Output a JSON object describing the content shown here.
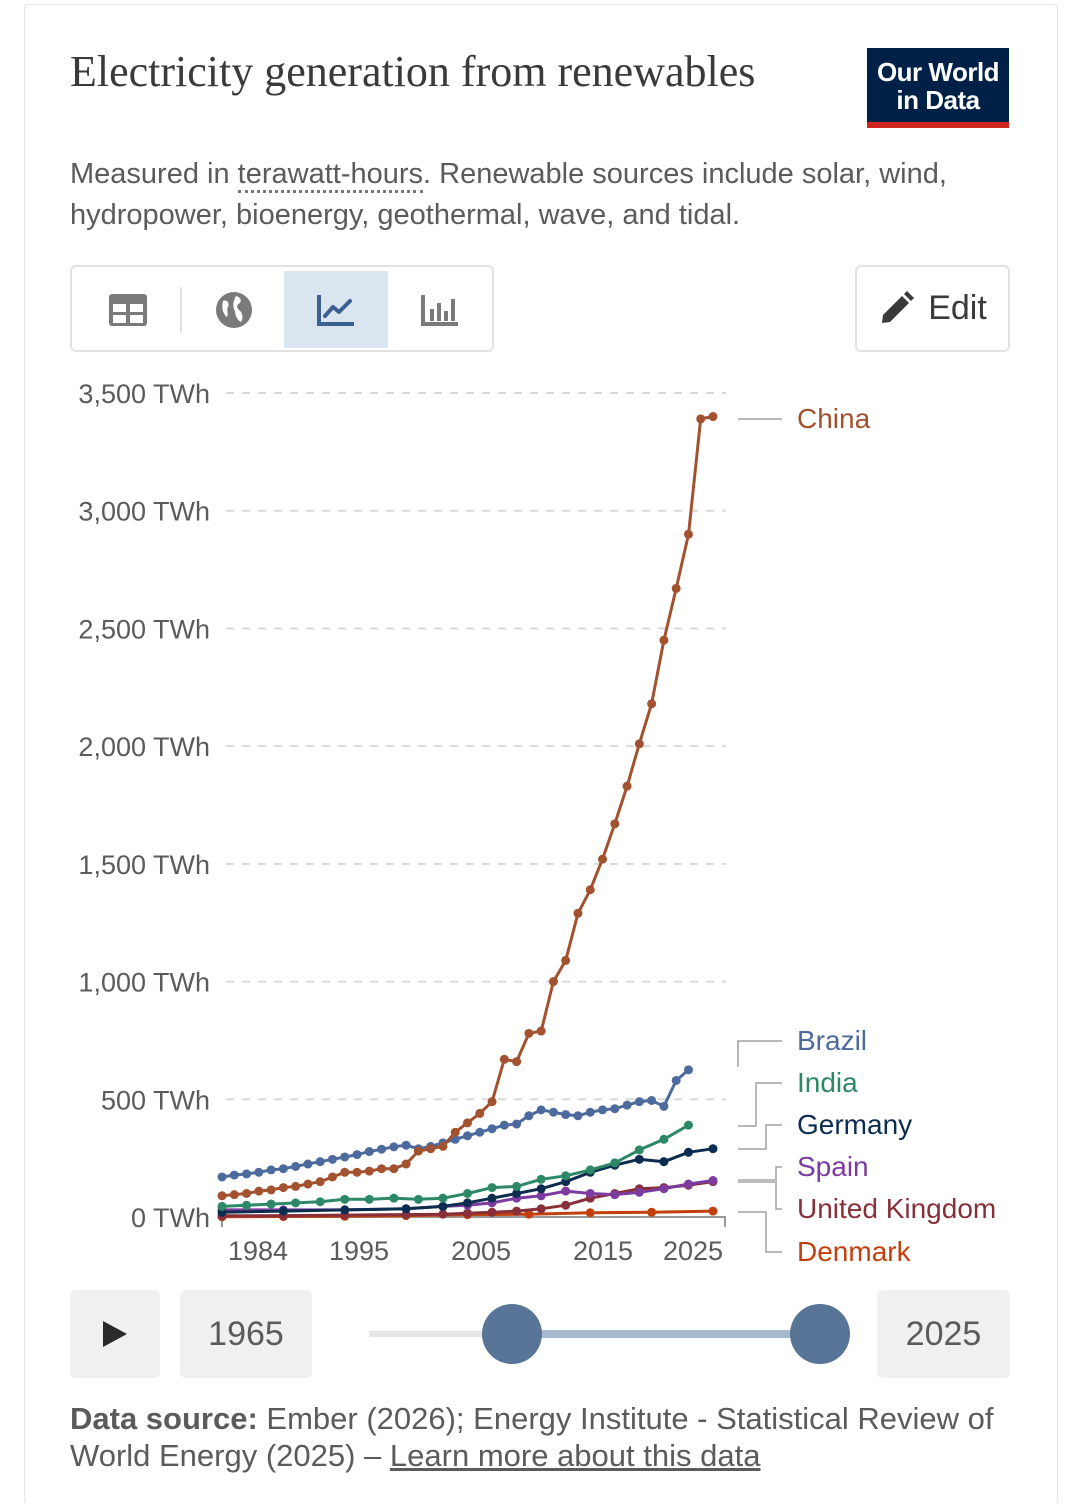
{
  "title": "Electricity generation from renewables",
  "logo": {
    "line1": "Our World",
    "line2": "in Data"
  },
  "subtitle": {
    "prefix": "Measured in ",
    "unit_link": "terawatt-hours",
    "suffix": ". Renewable sources include solar, wind, hydropower, bioenergy, geothermal, wave, and tidal."
  },
  "tabs": [
    {
      "name": "table",
      "icon": "table-icon"
    },
    {
      "name": "map",
      "icon": "globe-icon"
    },
    {
      "name": "line-chart",
      "icon": "line-chart-icon",
      "active": true
    },
    {
      "name": "bar-chart",
      "icon": "bar-chart-icon"
    }
  ],
  "edit_label": "Edit",
  "chart_data": {
    "type": "line",
    "ylim": [
      0,
      3500
    ],
    "yticks": [
      0,
      500,
      1000,
      1500,
      2000,
      2500,
      3000,
      3500
    ],
    "ytick_labels": [
      "0 TWh",
      "500 TWh",
      "1,000 TWh",
      "1,500 TWh",
      "2,000 TWh",
      "2,500 TWh",
      "3,000 TWh",
      "3,500 TWh"
    ],
    "xlim": [
      1985,
      2025
    ],
    "xticks": [
      1984,
      1995,
      2005,
      2015,
      2025
    ],
    "xtick_labels": [
      "1984",
      "1995",
      "2005",
      "2015",
      "2025"
    ],
    "series": [
      {
        "name": "China",
        "color": "#a2522e",
        "x": [
          1985,
          1986,
          1987,
          1988,
          1989,
          1990,
          1991,
          1992,
          1993,
          1994,
          1995,
          1996,
          1997,
          1998,
          1999,
          2000,
          2001,
          2002,
          2003,
          2004,
          2005,
          2006,
          2007,
          2008,
          2009,
          2010,
          2011,
          2012,
          2013,
          2014,
          2015,
          2016,
          2017,
          2018,
          2019,
          2020,
          2021,
          2022,
          2023,
          2024,
          2025
        ],
        "y": [
          90,
          95,
          100,
          110,
          115,
          125,
          130,
          140,
          150,
          170,
          190,
          190,
          195,
          205,
          205,
          225,
          280,
          290,
          300,
          360,
          400,
          440,
          490,
          670,
          660,
          780,
          790,
          1000,
          1090,
          1290,
          1390,
          1520,
          1670,
          1830,
          2010,
          2180,
          2450,
          2670,
          2900,
          3390,
          3400
        ]
      },
      {
        "name": "Brazil",
        "color": "#4c6a9c",
        "x": [
          1985,
          1986,
          1987,
          1988,
          1989,
          1990,
          1991,
          1992,
          1993,
          1994,
          1995,
          1996,
          1997,
          1998,
          1999,
          2000,
          2001,
          2002,
          2003,
          2004,
          2005,
          2006,
          2007,
          2008,
          2009,
          2010,
          2011,
          2012,
          2013,
          2014,
          2015,
          2016,
          2017,
          2018,
          2019,
          2020,
          2021,
          2022,
          2023
        ],
        "y": [
          170,
          178,
          183,
          190,
          200,
          205,
          215,
          225,
          235,
          245,
          255,
          265,
          278,
          288,
          298,
          305,
          290,
          300,
          315,
          330,
          345,
          360,
          375,
          390,
          395,
          430,
          455,
          445,
          435,
          430,
          445,
          455,
          460,
          475,
          490,
          495,
          470,
          580,
          625
        ]
      },
      {
        "name": "India",
        "color": "#2d8965",
        "x": [
          1985,
          1987,
          1989,
          1991,
          1993,
          1995,
          1997,
          1999,
          2001,
          2003,
          2005,
          2007,
          2009,
          2011,
          2013,
          2015,
          2017,
          2019,
          2021,
          2023
        ],
        "y": [
          45,
          50,
          55,
          60,
          65,
          75,
          75,
          80,
          75,
          80,
          100,
          125,
          130,
          160,
          175,
          200,
          230,
          285,
          330,
          390
        ]
      },
      {
        "name": "Germany",
        "color": "#0c2d50",
        "x": [
          1985,
          1990,
          1995,
          2000,
          2003,
          2005,
          2007,
          2009,
          2011,
          2013,
          2015,
          2017,
          2019,
          2021,
          2023,
          2025
        ],
        "y": [
          20,
          25,
          30,
          35,
          45,
          60,
          80,
          100,
          120,
          150,
          190,
          220,
          245,
          235,
          275,
          290
        ]
      },
      {
        "name": "Spain",
        "color": "#7c3b9e",
        "x": [
          1985,
          1990,
          1995,
          2000,
          2003,
          2005,
          2007,
          2009,
          2011,
          2013,
          2015,
          2017,
          2019,
          2021,
          2023,
          2025
        ],
        "y": [
          30,
          30,
          30,
          35,
          45,
          50,
          60,
          80,
          90,
          110,
          100,
          95,
          105,
          120,
          140,
          155
        ]
      },
      {
        "name": "United Kingdom",
        "color": "#883039",
        "x": [
          1985,
          1990,
          1995,
          2000,
          2003,
          2005,
          2007,
          2009,
          2011,
          2013,
          2015,
          2017,
          2019,
          2021,
          2023,
          2025
        ],
        "y": [
          5,
          6,
          8,
          10,
          12,
          16,
          20,
          25,
          35,
          50,
          80,
          100,
          120,
          125,
          135,
          150
        ]
      },
      {
        "name": "Denmark",
        "color": "#c2400c",
        "x": [
          1985,
          1990,
          1995,
          2000,
          2005,
          2010,
          2015,
          2020,
          2025
        ],
        "y": [
          1,
          2,
          3,
          6,
          10,
          12,
          18,
          20,
          25
        ]
      }
    ],
    "legend_labels": [
      "China",
      "Brazil",
      "India",
      "Germany",
      "Spain",
      "United Kingdom",
      "Denmark"
    ]
  },
  "timeline": {
    "play_label": "play",
    "start_year": "1965",
    "end_year": "2025"
  },
  "source": {
    "label": "Data source:",
    "text": " Ember (2026); Energy Institute - Statistical Review of World Energy (2025) – ",
    "link": "Learn more about this data"
  }
}
